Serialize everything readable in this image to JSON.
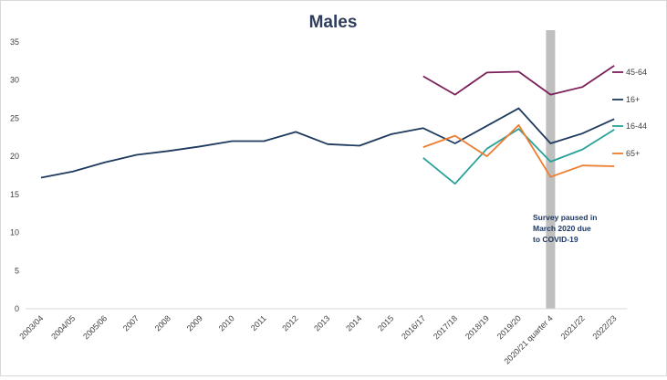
{
  "chart_data": {
    "type": "line",
    "title": "Males",
    "xlabel": "",
    "ylabel": "",
    "ylim": [
      0,
      35
    ],
    "yticks": [
      0,
      5,
      10,
      15,
      20,
      25,
      30,
      35
    ],
    "categories": [
      "2003/04",
      "2004/05",
      "2005/06",
      "2007",
      "2008",
      "2009",
      "2010",
      "2011",
      "2012",
      "2013",
      "2014",
      "2015",
      "2016/17",
      "2017/18",
      "2018/19",
      "2019/20",
      "2020/21 quarter 4",
      "2021/22",
      "2022/23"
    ],
    "series": [
      {
        "name": "45-64",
        "color": "#7b1f5b",
        "values": [
          null,
          null,
          null,
          null,
          null,
          null,
          null,
          null,
          null,
          null,
          null,
          null,
          30.5,
          28.1,
          31.0,
          31.1,
          28.1,
          29.1,
          31.9
        ]
      },
      {
        "name": "16+",
        "color": "#1f3a5f",
        "values": [
          17.2,
          18.0,
          19.2,
          20.2,
          20.7,
          21.3,
          22.0,
          22.0,
          23.2,
          21.6,
          21.4,
          22.9,
          23.7,
          21.7,
          24.0,
          26.3,
          21.7,
          23.0,
          24.9
        ]
      },
      {
        "name": "16-44",
        "color": "#2aa198",
        "values": [
          null,
          null,
          null,
          null,
          null,
          null,
          null,
          null,
          null,
          null,
          null,
          null,
          19.8,
          16.4,
          21.0,
          23.6,
          19.3,
          20.9,
          23.5
        ]
      },
      {
        "name": "65+",
        "color": "#ed7d31",
        "values": [
          null,
          null,
          null,
          null,
          null,
          null,
          null,
          null,
          null,
          null,
          null,
          null,
          21.2,
          22.7,
          20.0,
          24.1,
          17.3,
          18.8,
          18.7
        ]
      }
    ],
    "legend_position": "right",
    "grid": false,
    "pause_marker": {
      "category": "2020/21 quarter 4",
      "color": "#bfbfbf",
      "annotation": [
        "Survey paused in",
        "March 2020 due",
        "to COVID-19"
      ]
    }
  }
}
